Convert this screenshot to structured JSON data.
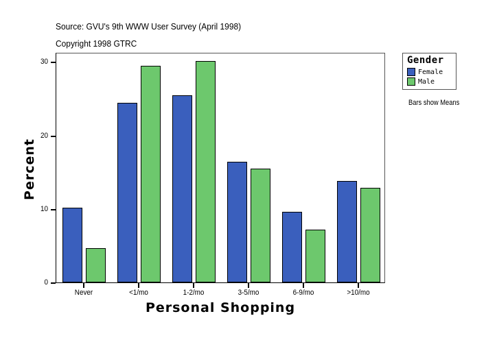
{
  "header": {
    "source": "Source: GVU's 9th WWW User Survey (April 1998)",
    "copyright": "Copyright 1998 GTRC"
  },
  "legend": {
    "title": "Gender",
    "items": [
      {
        "label": "Female",
        "color": "#3a5fbd"
      },
      {
        "label": "Male",
        "color": "#6dc86d"
      }
    ],
    "note": "Bars show Means"
  },
  "axes": {
    "ylabel": "Percent",
    "xlabel": "Personal Shopping",
    "yticks": [
      "0",
      "10",
      "20",
      "30"
    ]
  },
  "chart_data": {
    "type": "bar",
    "title": "Source: GVU's 9th WWW User Survey (April 1998)",
    "subtitle": "Copyright 1998 GTRC",
    "xlabel": "Personal Shopping",
    "ylabel": "Percent",
    "categories": [
      "Never",
      "<1/mo",
      "1-2/mo",
      "3-5/mo",
      "6-9/mo",
      ">10/mo"
    ],
    "series": [
      {
        "name": "Female",
        "color": "#3a5fbd",
        "values": [
          10.2,
          24.4,
          25.5,
          16.4,
          9.6,
          13.8
        ]
      },
      {
        "name": "Male",
        "color": "#6dc86d",
        "values": [
          4.7,
          29.5,
          30.1,
          15.5,
          7.2,
          12.9
        ]
      }
    ],
    "ylim": [
      0,
      31.3
    ],
    "yticks": [
      0,
      10,
      20,
      30
    ],
    "grid": false,
    "legend_title": "Gender",
    "legend_position": "right",
    "annotations": [
      "Bars show Means"
    ]
  }
}
